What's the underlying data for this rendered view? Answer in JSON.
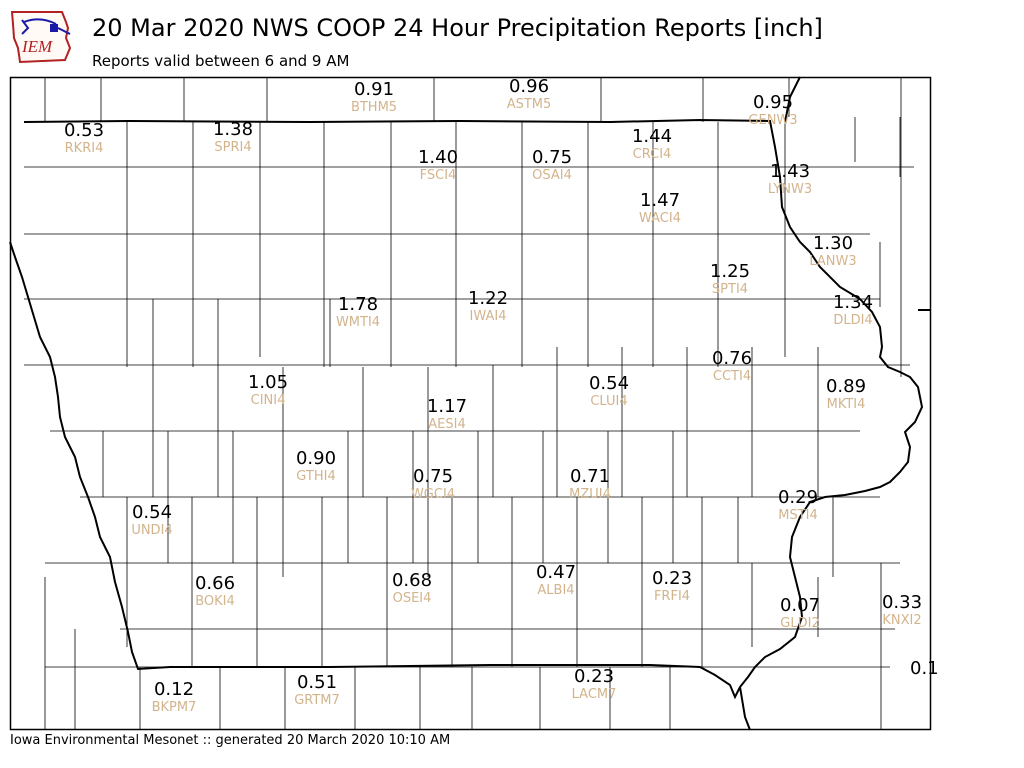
{
  "header": {
    "title": "20 Mar 2020 NWS COOP 24 Hour Precipitation Reports [inch]",
    "subtitle": "Reports valid between 6 and 9 AM",
    "logo_text": "IEM"
  },
  "footer": {
    "text": "Iowa Environmental Mesonet :: generated 20 March 2020 10:10 AM"
  },
  "colors": {
    "station_id": "#d2b48c",
    "value": "#000000",
    "logo_red": "#b22222",
    "logo_blue": "#1a1aa6"
  },
  "stations": [
    {
      "id": "BTHM5",
      "value": "0.91"
    },
    {
      "id": "ASTM5",
      "value": "0.96"
    },
    {
      "id": "GENW3",
      "value": "0.95"
    },
    {
      "id": "RKRI4",
      "value": "0.53"
    },
    {
      "id": "SPRI4",
      "value": "1.38"
    },
    {
      "id": "CRCI4",
      "value": "1.44"
    },
    {
      "id": "FSCI4",
      "value": "1.40"
    },
    {
      "id": "OSAI4",
      "value": "0.75"
    },
    {
      "id": "LYNW3",
      "value": "1.43"
    },
    {
      "id": "WACI4",
      "value": "1.47"
    },
    {
      "id": "LANW3",
      "value": "1.30"
    },
    {
      "id": "SPTI4",
      "value": "1.25"
    },
    {
      "id": "WMTI4",
      "value": "1.78"
    },
    {
      "id": "IWAI4",
      "value": "1.22"
    },
    {
      "id": "DLDI4",
      "value": "1.34"
    },
    {
      "id": "CCTI4",
      "value": "0.76"
    },
    {
      "id": "CINI4",
      "value": "1.05"
    },
    {
      "id": "CLUI4",
      "value": "0.54"
    },
    {
      "id": "MKTI4",
      "value": "0.89"
    },
    {
      "id": "AESI4",
      "value": "1.17"
    },
    {
      "id": "GTHI4",
      "value": "0.90"
    },
    {
      "id": "WGCI4",
      "value": "0.75"
    },
    {
      "id": "MZUI4",
      "value": "0.71"
    },
    {
      "id": "MSTI4",
      "value": "0.29"
    },
    {
      "id": "UNDI4",
      "value": "0.54"
    },
    {
      "id": "BOKI4",
      "value": "0.66"
    },
    {
      "id": "OSEI4",
      "value": "0.68"
    },
    {
      "id": "ALBI4",
      "value": "0.47"
    },
    {
      "id": "FRFI4",
      "value": "0.23"
    },
    {
      "id": "GLDI2",
      "value": "0.07"
    },
    {
      "id": "KNXI2",
      "value": "0.33"
    },
    {
      "id": "BKPM7",
      "value": "0.12"
    },
    {
      "id": "GRTM7",
      "value": "0.51"
    },
    {
      "id": "LACM7",
      "value": "0.23"
    },
    {
      "id": "",
      "value": "0.1"
    }
  ]
}
